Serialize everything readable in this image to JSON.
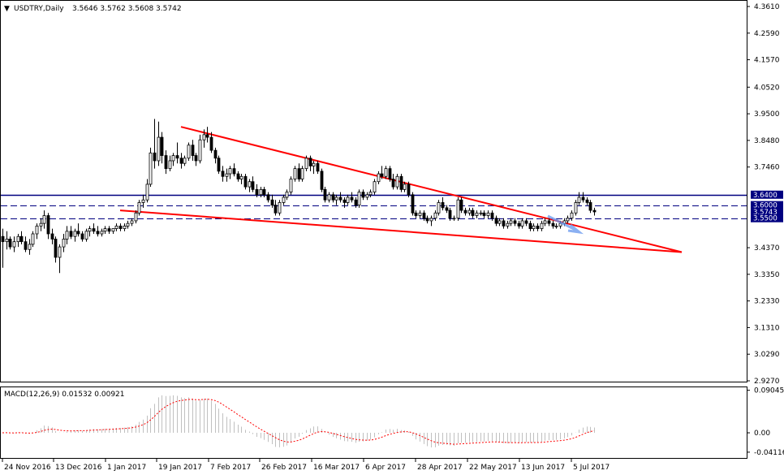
{
  "header": {
    "symbol": "USDTRY,Daily",
    "ohlc": "3.5646 3.5762 3.5608 3.5742"
  },
  "macd_header": {
    "label": "MACD(12,26,9) 0.01532 0.00921"
  },
  "colors": {
    "background": "#ffffff",
    "candles": "#000000",
    "trendline": "#ff0000",
    "level_line": "#000080",
    "price_tag": "#000080",
    "macd_histogram": "#c0c0c0",
    "macd_signal": "#ff0000",
    "arrow": "#6495ed"
  },
  "chart_data": [
    {
      "type": "candlestick",
      "title": "USDTRY,Daily",
      "ylim": [
        2.927,
        4.361
      ],
      "y_ticks": [
        "4.3610",
        "4.2590",
        "4.1570",
        "4.0520",
        "3.9500",
        "3.8480",
        "3.7460",
        "3.6400",
        "3.6000",
        "3.5743",
        "3.5500",
        "3.4370",
        "3.3350",
        "3.2330",
        "3.1310",
        "3.0290",
        "2.9270"
      ],
      "x_tick_labels": [
        "24 Nov 2016",
        "13 Dec 2016",
        "1 Jan 2017",
        "19 Jan 2017",
        "7 Feb 2017",
        "26 Feb 2017",
        "16 Mar 2017",
        "6 Apr 2017",
        "28 Apr 2017",
        "22 May 2017",
        "13 Jun 2017",
        "5 Jul 2017"
      ],
      "last_price": 3.5743,
      "levels": [
        {
          "value": 3.64,
          "label": "3.6400",
          "style": "solid"
        },
        {
          "value": 3.6,
          "label": "3.6000",
          "style": "dashed"
        },
        {
          "value": 3.55,
          "label": "3.5500",
          "style": "dashed"
        }
      ],
      "trendlines": [
        {
          "from": {
            "date": "19 Jan 2017",
            "value": 3.9
          },
          "to": {
            "date": "8 Aug 2017",
            "value": 3.42
          }
        },
        {
          "from": {
            "date": "2 Jan 2017",
            "value": 3.58
          },
          "to": {
            "date": "8 Aug 2017",
            "value": 3.42
          }
        }
      ],
      "bars": [
        {
          "o": 3.48,
          "h": 3.51,
          "l": 3.36,
          "c": 3.46
        },
        {
          "o": 3.46,
          "h": 3.5,
          "l": 3.43,
          "c": 3.47
        },
        {
          "o": 3.47,
          "h": 3.48,
          "l": 3.43,
          "c": 3.44
        },
        {
          "o": 3.44,
          "h": 3.48,
          "l": 3.42,
          "c": 3.46
        },
        {
          "o": 3.46,
          "h": 3.49,
          "l": 3.44,
          "c": 3.48
        },
        {
          "o": 3.48,
          "h": 3.5,
          "l": 3.45,
          "c": 3.46
        },
        {
          "o": 3.46,
          "h": 3.48,
          "l": 3.42,
          "c": 3.43
        },
        {
          "o": 3.43,
          "h": 3.47,
          "l": 3.41,
          "c": 3.45
        },
        {
          "o": 3.45,
          "h": 3.5,
          "l": 3.44,
          "c": 3.49
        },
        {
          "o": 3.49,
          "h": 3.53,
          "l": 3.47,
          "c": 3.52
        },
        {
          "o": 3.52,
          "h": 3.55,
          "l": 3.5,
          "c": 3.53
        },
        {
          "o": 3.53,
          "h": 3.58,
          "l": 3.51,
          "c": 3.56
        },
        {
          "o": 3.56,
          "h": 3.57,
          "l": 3.47,
          "c": 3.49
        },
        {
          "o": 3.49,
          "h": 3.51,
          "l": 3.45,
          "c": 3.47
        },
        {
          "o": 3.47,
          "h": 3.48,
          "l": 3.38,
          "c": 3.4
        },
        {
          "o": 3.4,
          "h": 3.45,
          "l": 3.34,
          "c": 3.44
        },
        {
          "o": 3.44,
          "h": 3.49,
          "l": 3.42,
          "c": 3.47
        },
        {
          "o": 3.47,
          "h": 3.52,
          "l": 3.45,
          "c": 3.5
        },
        {
          "o": 3.5,
          "h": 3.52,
          "l": 3.47,
          "c": 3.48
        },
        {
          "o": 3.48,
          "h": 3.51,
          "l": 3.46,
          "c": 3.5
        },
        {
          "o": 3.5,
          "h": 3.53,
          "l": 3.48,
          "c": 3.49
        },
        {
          "o": 3.49,
          "h": 3.5,
          "l": 3.46,
          "c": 3.47
        },
        {
          "o": 3.47,
          "h": 3.51,
          "l": 3.46,
          "c": 3.5
        },
        {
          "o": 3.5,
          "h": 3.52,
          "l": 3.48,
          "c": 3.51
        },
        {
          "o": 3.51,
          "h": 3.53,
          "l": 3.49,
          "c": 3.5
        },
        {
          "o": 3.5,
          "h": 3.52,
          "l": 3.48,
          "c": 3.49
        },
        {
          "o": 3.49,
          "h": 3.51,
          "l": 3.48,
          "c": 3.5
        },
        {
          "o": 3.5,
          "h": 3.52,
          "l": 3.49,
          "c": 3.51
        },
        {
          "o": 3.51,
          "h": 3.52,
          "l": 3.49,
          "c": 3.5
        },
        {
          "o": 3.5,
          "h": 3.51,
          "l": 3.49,
          "c": 3.51
        },
        {
          "o": 3.51,
          "h": 3.53,
          "l": 3.5,
          "c": 3.52
        },
        {
          "o": 3.52,
          "h": 3.53,
          "l": 3.5,
          "c": 3.51
        },
        {
          "o": 3.51,
          "h": 3.53,
          "l": 3.5,
          "c": 3.52
        },
        {
          "o": 3.52,
          "h": 3.54,
          "l": 3.51,
          "c": 3.53
        },
        {
          "o": 3.53,
          "h": 3.55,
          "l": 3.52,
          "c": 3.54
        },
        {
          "o": 3.54,
          "h": 3.58,
          "l": 3.53,
          "c": 3.57
        },
        {
          "o": 3.57,
          "h": 3.62,
          "l": 3.56,
          "c": 3.61
        },
        {
          "o": 3.61,
          "h": 3.64,
          "l": 3.59,
          "c": 3.62
        },
        {
          "o": 3.62,
          "h": 3.7,
          "l": 3.61,
          "c": 3.68
        },
        {
          "o": 3.68,
          "h": 3.82,
          "l": 3.67,
          "c": 3.8
        },
        {
          "o": 3.8,
          "h": 3.93,
          "l": 3.74,
          "c": 3.77
        },
        {
          "o": 3.77,
          "h": 3.92,
          "l": 3.75,
          "c": 3.86
        },
        {
          "o": 3.86,
          "h": 3.88,
          "l": 3.76,
          "c": 3.79
        },
        {
          "o": 3.79,
          "h": 3.81,
          "l": 3.72,
          "c": 3.74
        },
        {
          "o": 3.74,
          "h": 3.79,
          "l": 3.73,
          "c": 3.77
        },
        {
          "o": 3.77,
          "h": 3.8,
          "l": 3.75,
          "c": 3.79
        },
        {
          "o": 3.79,
          "h": 3.84,
          "l": 3.76,
          "c": 3.78
        },
        {
          "o": 3.78,
          "h": 3.8,
          "l": 3.74,
          "c": 3.76
        },
        {
          "o": 3.76,
          "h": 3.79,
          "l": 3.75,
          "c": 3.78
        },
        {
          "o": 3.78,
          "h": 3.84,
          "l": 3.77,
          "c": 3.83
        },
        {
          "o": 3.83,
          "h": 3.85,
          "l": 3.77,
          "c": 3.79
        },
        {
          "o": 3.79,
          "h": 3.8,
          "l": 3.75,
          "c": 3.77
        },
        {
          "o": 3.77,
          "h": 3.87,
          "l": 3.76,
          "c": 3.85
        },
        {
          "o": 3.85,
          "h": 3.89,
          "l": 3.82,
          "c": 3.87
        },
        {
          "o": 3.87,
          "h": 3.9,
          "l": 3.84,
          "c": 3.86
        },
        {
          "o": 3.86,
          "h": 3.88,
          "l": 3.8,
          "c": 3.81
        },
        {
          "o": 3.81,
          "h": 3.82,
          "l": 3.76,
          "c": 3.78
        },
        {
          "o": 3.78,
          "h": 3.79,
          "l": 3.72,
          "c": 3.73
        },
        {
          "o": 3.73,
          "h": 3.75,
          "l": 3.69,
          "c": 3.71
        },
        {
          "o": 3.71,
          "h": 3.74,
          "l": 3.69,
          "c": 3.72
        },
        {
          "o": 3.72,
          "h": 3.75,
          "l": 3.7,
          "c": 3.74
        },
        {
          "o": 3.74,
          "h": 3.76,
          "l": 3.71,
          "c": 3.72
        },
        {
          "o": 3.72,
          "h": 3.73,
          "l": 3.69,
          "c": 3.7
        },
        {
          "o": 3.7,
          "h": 3.72,
          "l": 3.68,
          "c": 3.71
        },
        {
          "o": 3.71,
          "h": 3.72,
          "l": 3.66,
          "c": 3.67
        },
        {
          "o": 3.67,
          "h": 3.7,
          "l": 3.65,
          "c": 3.69
        },
        {
          "o": 3.69,
          "h": 3.71,
          "l": 3.65,
          "c": 3.66
        },
        {
          "o": 3.66,
          "h": 3.68,
          "l": 3.63,
          "c": 3.64
        },
        {
          "o": 3.64,
          "h": 3.67,
          "l": 3.63,
          "c": 3.66
        },
        {
          "o": 3.66,
          "h": 3.67,
          "l": 3.63,
          "c": 3.64
        },
        {
          "o": 3.64,
          "h": 3.65,
          "l": 3.61,
          "c": 3.62
        },
        {
          "o": 3.62,
          "h": 3.64,
          "l": 3.59,
          "c": 3.6
        },
        {
          "o": 3.6,
          "h": 3.62,
          "l": 3.56,
          "c": 3.57
        },
        {
          "o": 3.57,
          "h": 3.62,
          "l": 3.56,
          "c": 3.61
        },
        {
          "o": 3.61,
          "h": 3.64,
          "l": 3.6,
          "c": 3.63
        },
        {
          "o": 3.63,
          "h": 3.66,
          "l": 3.62,
          "c": 3.65
        },
        {
          "o": 3.65,
          "h": 3.71,
          "l": 3.64,
          "c": 3.7
        },
        {
          "o": 3.7,
          "h": 3.75,
          "l": 3.69,
          "c": 3.74
        },
        {
          "o": 3.74,
          "h": 3.76,
          "l": 3.69,
          "c": 3.7
        },
        {
          "o": 3.7,
          "h": 3.75,
          "l": 3.69,
          "c": 3.74
        },
        {
          "o": 3.74,
          "h": 3.79,
          "l": 3.73,
          "c": 3.78
        },
        {
          "o": 3.78,
          "h": 3.79,
          "l": 3.73,
          "c": 3.75
        },
        {
          "o": 3.75,
          "h": 3.77,
          "l": 3.72,
          "c": 3.76
        },
        {
          "o": 3.76,
          "h": 3.77,
          "l": 3.72,
          "c": 3.73
        },
        {
          "o": 3.73,
          "h": 3.74,
          "l": 3.65,
          "c": 3.66
        },
        {
          "o": 3.66,
          "h": 3.67,
          "l": 3.61,
          "c": 3.62
        },
        {
          "o": 3.62,
          "h": 3.65,
          "l": 3.61,
          "c": 3.64
        },
        {
          "o": 3.64,
          "h": 3.65,
          "l": 3.61,
          "c": 3.62
        },
        {
          "o": 3.62,
          "h": 3.64,
          "l": 3.6,
          "c": 3.63
        },
        {
          "o": 3.63,
          "h": 3.65,
          "l": 3.61,
          "c": 3.62
        },
        {
          "o": 3.62,
          "h": 3.63,
          "l": 3.59,
          "c": 3.61
        },
        {
          "o": 3.61,
          "h": 3.64,
          "l": 3.6,
          "c": 3.63
        },
        {
          "o": 3.63,
          "h": 3.65,
          "l": 3.61,
          "c": 3.62
        },
        {
          "o": 3.62,
          "h": 3.63,
          "l": 3.59,
          "c": 3.6
        },
        {
          "o": 3.6,
          "h": 3.66,
          "l": 3.59,
          "c": 3.65
        },
        {
          "o": 3.65,
          "h": 3.66,
          "l": 3.62,
          "c": 3.63
        },
        {
          "o": 3.63,
          "h": 3.65,
          "l": 3.62,
          "c": 3.64
        },
        {
          "o": 3.64,
          "h": 3.66,
          "l": 3.63,
          "c": 3.65
        },
        {
          "o": 3.65,
          "h": 3.7,
          "l": 3.64,
          "c": 3.69
        },
        {
          "o": 3.69,
          "h": 3.73,
          "l": 3.68,
          "c": 3.72
        },
        {
          "o": 3.72,
          "h": 3.75,
          "l": 3.7,
          "c": 3.71
        },
        {
          "o": 3.71,
          "h": 3.75,
          "l": 3.7,
          "c": 3.74
        },
        {
          "o": 3.74,
          "h": 3.75,
          "l": 3.69,
          "c": 3.7
        },
        {
          "o": 3.7,
          "h": 3.72,
          "l": 3.66,
          "c": 3.67
        },
        {
          "o": 3.67,
          "h": 3.72,
          "l": 3.66,
          "c": 3.71
        },
        {
          "o": 3.71,
          "h": 3.72,
          "l": 3.65,
          "c": 3.66
        },
        {
          "o": 3.66,
          "h": 3.69,
          "l": 3.65,
          "c": 3.68
        },
        {
          "o": 3.68,
          "h": 3.69,
          "l": 3.63,
          "c": 3.64
        },
        {
          "o": 3.64,
          "h": 3.65,
          "l": 3.56,
          "c": 3.57
        },
        {
          "o": 3.57,
          "h": 3.58,
          "l": 3.55,
          "c": 3.56
        },
        {
          "o": 3.56,
          "h": 3.58,
          "l": 3.55,
          "c": 3.57
        },
        {
          "o": 3.57,
          "h": 3.58,
          "l": 3.54,
          "c": 3.55
        },
        {
          "o": 3.55,
          "h": 3.56,
          "l": 3.53,
          "c": 3.54
        },
        {
          "o": 3.54,
          "h": 3.56,
          "l": 3.52,
          "c": 3.55
        },
        {
          "o": 3.55,
          "h": 3.58,
          "l": 3.54,
          "c": 3.57
        },
        {
          "o": 3.57,
          "h": 3.62,
          "l": 3.56,
          "c": 3.61
        },
        {
          "o": 3.61,
          "h": 3.63,
          "l": 3.58,
          "c": 3.59
        },
        {
          "o": 3.59,
          "h": 3.6,
          "l": 3.57,
          "c": 3.58
        },
        {
          "o": 3.58,
          "h": 3.59,
          "l": 3.54,
          "c": 3.55
        },
        {
          "o": 3.55,
          "h": 3.56,
          "l": 3.54,
          "c": 3.55
        },
        {
          "o": 3.55,
          "h": 3.63,
          "l": 3.54,
          "c": 3.62
        },
        {
          "o": 3.62,
          "h": 3.63,
          "l": 3.57,
          "c": 3.58
        },
        {
          "o": 3.58,
          "h": 3.59,
          "l": 3.56,
          "c": 3.57
        },
        {
          "o": 3.57,
          "h": 3.59,
          "l": 3.56,
          "c": 3.58
        },
        {
          "o": 3.58,
          "h": 3.59,
          "l": 3.55,
          "c": 3.56
        },
        {
          "o": 3.56,
          "h": 3.58,
          "l": 3.55,
          "c": 3.57
        },
        {
          "o": 3.57,
          "h": 3.58,
          "l": 3.56,
          "c": 3.57
        },
        {
          "o": 3.57,
          "h": 3.58,
          "l": 3.55,
          "c": 3.56
        },
        {
          "o": 3.56,
          "h": 3.58,
          "l": 3.55,
          "c": 3.57
        },
        {
          "o": 3.57,
          "h": 3.58,
          "l": 3.54,
          "c": 3.55
        },
        {
          "o": 3.55,
          "h": 3.56,
          "l": 3.52,
          "c": 3.53
        },
        {
          "o": 3.53,
          "h": 3.55,
          "l": 3.52,
          "c": 3.54
        },
        {
          "o": 3.54,
          "h": 3.55,
          "l": 3.51,
          "c": 3.52
        },
        {
          "o": 3.52,
          "h": 3.54,
          "l": 3.51,
          "c": 3.53
        },
        {
          "o": 3.53,
          "h": 3.55,
          "l": 3.52,
          "c": 3.54
        },
        {
          "o": 3.54,
          "h": 3.55,
          "l": 3.52,
          "c": 3.53
        },
        {
          "o": 3.53,
          "h": 3.54,
          "l": 3.51,
          "c": 3.52
        },
        {
          "o": 3.52,
          "h": 3.55,
          "l": 3.51,
          "c": 3.54
        },
        {
          "o": 3.54,
          "h": 3.55,
          "l": 3.52,
          "c": 3.53
        },
        {
          "o": 3.53,
          "h": 3.54,
          "l": 3.5,
          "c": 3.51
        },
        {
          "o": 3.51,
          "h": 3.53,
          "l": 3.5,
          "c": 3.52
        },
        {
          "o": 3.52,
          "h": 3.53,
          "l": 3.5,
          "c": 3.51
        },
        {
          "o": 3.51,
          "h": 3.54,
          "l": 3.5,
          "c": 3.53
        },
        {
          "o": 3.53,
          "h": 3.55,
          "l": 3.52,
          "c": 3.54
        },
        {
          "o": 3.54,
          "h": 3.55,
          "l": 3.52,
          "c": 3.53
        },
        {
          "o": 3.53,
          "h": 3.54,
          "l": 3.51,
          "c": 3.52
        },
        {
          "o": 3.52,
          "h": 3.53,
          "l": 3.51,
          "c": 3.52
        },
        {
          "o": 3.52,
          "h": 3.54,
          "l": 3.51,
          "c": 3.53
        },
        {
          "o": 3.53,
          "h": 3.55,
          "l": 3.52,
          "c": 3.54
        },
        {
          "o": 3.54,
          "h": 3.56,
          "l": 3.53,
          "c": 3.55
        },
        {
          "o": 3.55,
          "h": 3.58,
          "l": 3.54,
          "c": 3.57
        },
        {
          "o": 3.57,
          "h": 3.62,
          "l": 3.56,
          "c": 3.61
        },
        {
          "o": 3.61,
          "h": 3.65,
          "l": 3.6,
          "c": 3.63
        },
        {
          "o": 3.63,
          "h": 3.65,
          "l": 3.61,
          "c": 3.62
        },
        {
          "o": 3.62,
          "h": 3.63,
          "l": 3.6,
          "c": 3.61
        },
        {
          "o": 3.61,
          "h": 3.62,
          "l": 3.57,
          "c": 3.58
        },
        {
          "o": 3.58,
          "h": 3.59,
          "l": 3.56,
          "c": 3.5742
        }
      ]
    },
    {
      "type": "macd",
      "title": "MACD(12,26,9) 0.01532 0.00921",
      "ylim": [
        -0.05,
        0.095
      ],
      "y_ticks": [
        "0.09045",
        "0.00",
        "-0.04116"
      ],
      "main": 0.01532,
      "signal": 0.00921
    }
  ]
}
